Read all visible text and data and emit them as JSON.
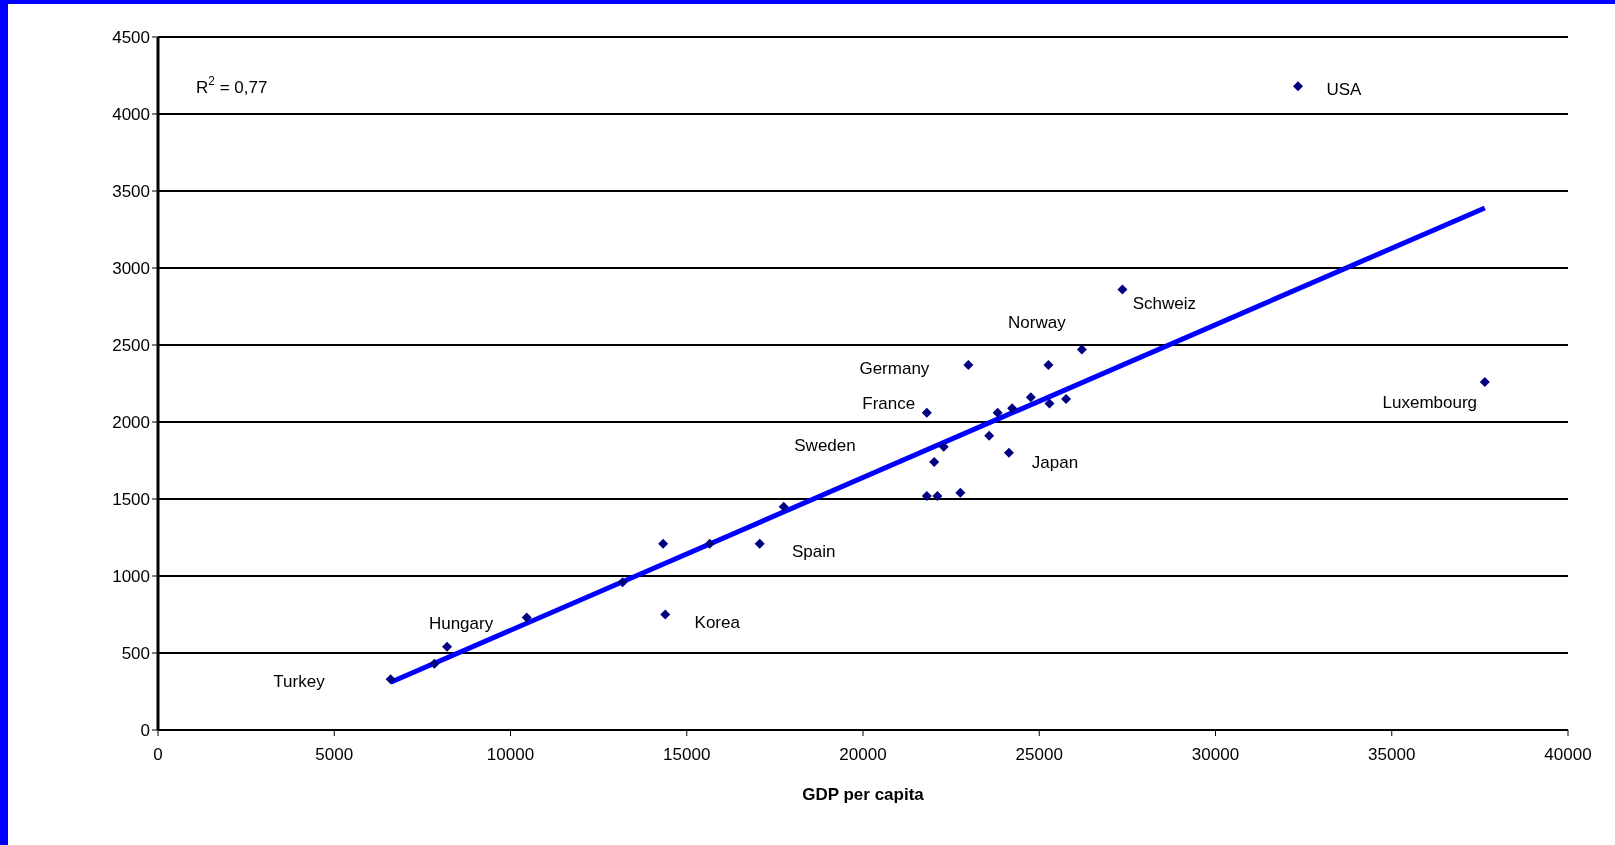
{
  "chart_data": {
    "type": "scatter",
    "xlabel": "GDP per capita",
    "xlim": [
      0,
      40000
    ],
    "xticks": [
      0,
      5000,
      10000,
      15000,
      20000,
      25000,
      30000,
      35000,
      40000
    ],
    "ylim": [
      0,
      4500
    ],
    "yticks": [
      0,
      500,
      1000,
      1500,
      2000,
      2500,
      3000,
      3500,
      4000,
      4500
    ],
    "grid": "y",
    "marker": "diamond",
    "legend": false,
    "series": [
      {
        "color": "#000080",
        "x": [
          6600,
          7840,
          8200,
          10460,
          13180,
          14330,
          14390,
          15650,
          17070,
          17750,
          21810,
          21810,
          22110,
          22020,
          22290,
          22760,
          22990,
          23580,
          23820,
          24140,
          24230,
          24760,
          25260,
          25290,
          25760,
          26210,
          27360,
          32340,
          37640
        ],
        "values": [
          330,
          430,
          540,
          730,
          960,
          1210,
          750,
          1210,
          1210,
          1450,
          2060,
          1520,
          1520,
          1740,
          1840,
          1540,
          2370,
          1910,
          2060,
          1800,
          2090,
          2160,
          2370,
          2120,
          2150,
          2470,
          2860,
          4180,
          2260
        ]
      },
      {
        "type": "line",
        "marker": "none",
        "color": "#0000ff",
        "x": [
          6600,
          37640
        ],
        "values": [
          310,
          3390
        ]
      }
    ],
    "annotations": [
      "R$^{2}$ = 0,77",
      "Turkey",
      {
        "text": "Hungary",
        "x": 8200,
        "y": 540
      },
      {
        "text": "Korea",
        "x": 14390,
        "y": 750
      },
      {
        "text": "Spain",
        "x": 17070,
        "y": 1210
      },
      "Sweden",
      {
        "text": "France",
        "x": 21810,
        "y": 2060
      },
      {
        "text": "Germany",
        "x": 22990,
        "y": 2370
      },
      {
        "text": "Japan",
        "x": 24140,
        "y": 1800
      },
      {
        "text": "Norway",
        "x": 26210,
        "y": 2470
      },
      {
        "text": "Schweiz",
        "x": 27360,
        "y": 2860
      },
      {
        "text": "USA",
        "x": 32340,
        "y": 4180
      },
      {
        "text": "Luxembourg",
        "x": 37640,
        "y": 2260
      }
    ]
  }
}
